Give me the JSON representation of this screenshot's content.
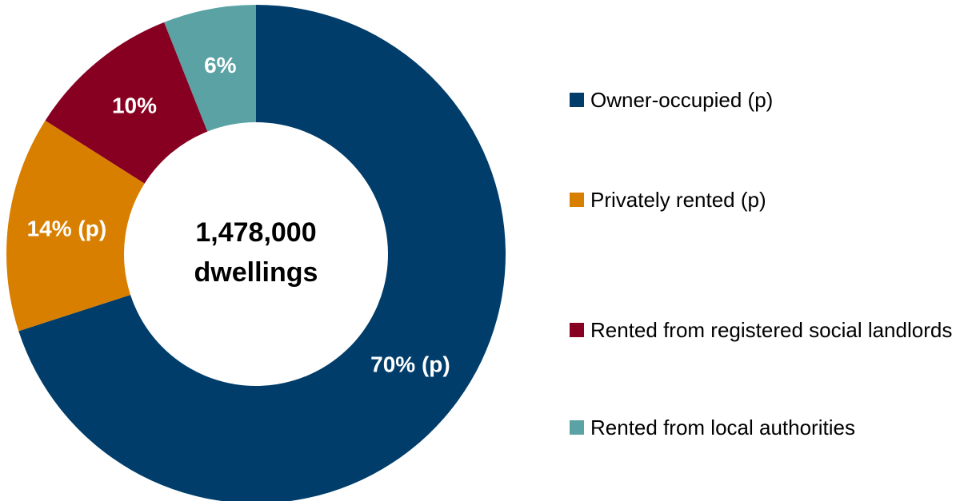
{
  "chart_data": {
    "type": "pie",
    "categories": [
      "Owner-occupied (p)",
      "Privately rented (p)",
      "Rented from registered social landlords",
      "Rented from local authorities"
    ],
    "values": [
      70,
      14,
      10,
      6
    ],
    "value_labels": [
      "70% (p)",
      "14% (p)",
      "10%",
      "6%"
    ],
    "colors": [
      "#003d6a",
      "#d97f00",
      "#870021",
      "#5aa2a4"
    ],
    "center_text": [
      "1,478,000",
      "dwellings"
    ],
    "legend": "right"
  }
}
